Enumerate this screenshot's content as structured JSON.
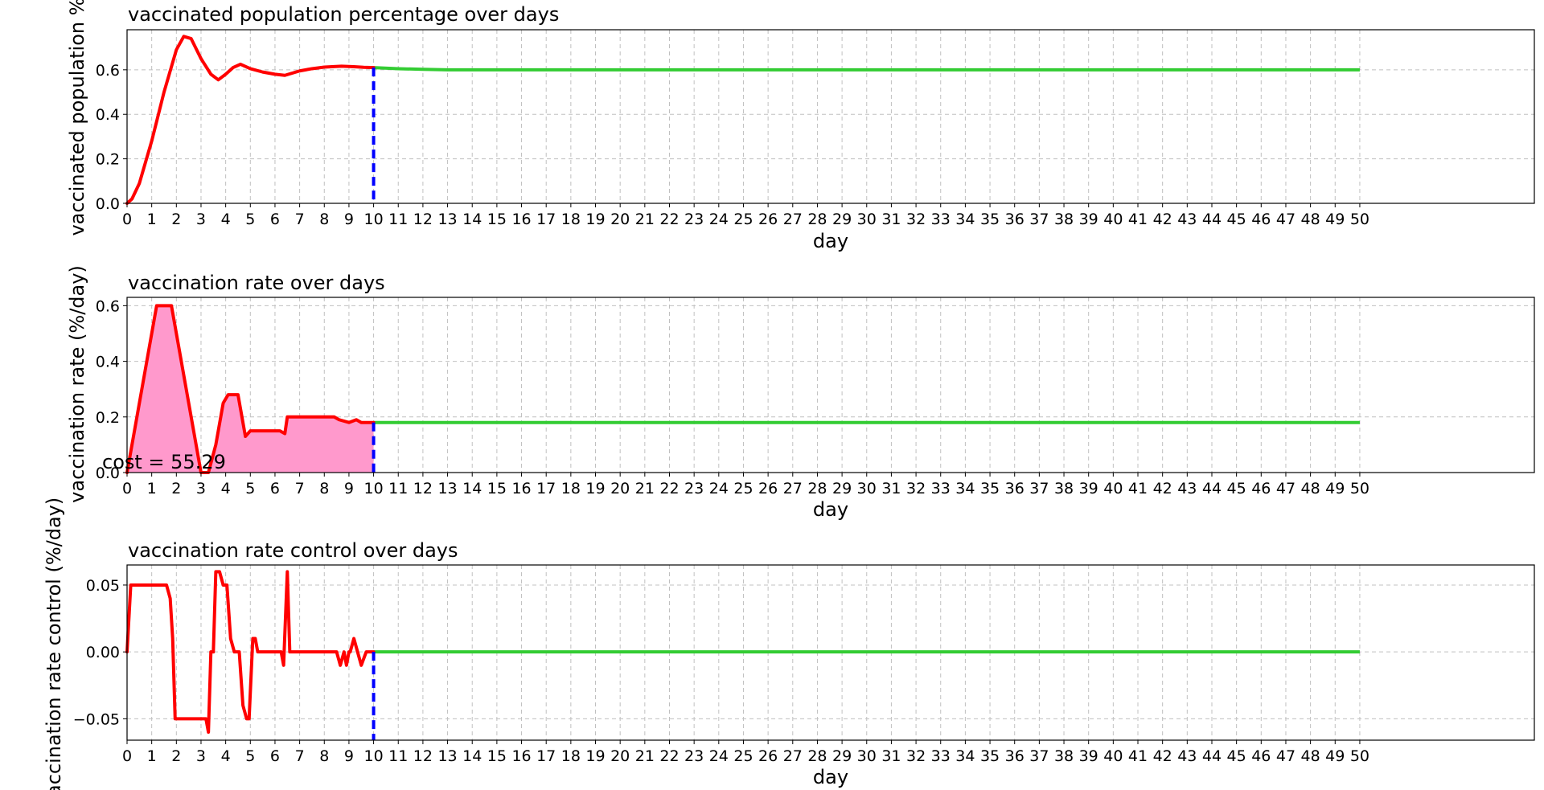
{
  "figure": {
    "annotation": "cost = 55.29"
  },
  "colors": {
    "history_line": "#ff0000",
    "prediction_line": "#33cc33",
    "divider_line": "#0000ff",
    "fill": "#ff99cc",
    "grid": "#c0c0c0"
  },
  "chart_data": [
    {
      "type": "line",
      "title": "vaccinated population percentage over days",
      "xlabel": "day",
      "ylabel": "vaccinated population %",
      "xlim": [
        0,
        50
      ],
      "ylim": [
        0,
        0.78
      ],
      "xticks": [
        0,
        1,
        2,
        3,
        4,
        5,
        6,
        7,
        8,
        9,
        10,
        11,
        12,
        13,
        14,
        15,
        16,
        17,
        18,
        19,
        20,
        21,
        22,
        23,
        24,
        25,
        26,
        27,
        28,
        29,
        30,
        31,
        32,
        33,
        34,
        35,
        36,
        37,
        38,
        39,
        40,
        41,
        42,
        43,
        44,
        45,
        46,
        47,
        48,
        49,
        50
      ],
      "yticks": [
        0.0,
        0.2,
        0.4,
        0.6
      ],
      "ytick_labels": [
        "0.0",
        "0.2",
        "0.4",
        "0.6"
      ],
      "grid": true,
      "divider_x": 10,
      "series": [
        {
          "role": "history",
          "x": [
            0,
            0.2,
            0.5,
            1,
            1.5,
            2,
            2.3,
            2.6,
            3,
            3.4,
            3.7,
            4,
            4.3,
            4.6,
            5,
            5.5,
            6,
            6.4,
            7,
            7.5,
            8,
            8.7,
            9.2,
            9.6,
            10
          ],
          "y": [
            0,
            0.02,
            0.09,
            0.28,
            0.5,
            0.69,
            0.75,
            0.74,
            0.65,
            0.58,
            0.555,
            0.58,
            0.61,
            0.625,
            0.605,
            0.59,
            0.58,
            0.575,
            0.595,
            0.605,
            0.612,
            0.616,
            0.614,
            0.611,
            0.61
          ]
        },
        {
          "role": "prediction",
          "x": [
            10,
            11,
            12,
            13,
            15,
            20,
            30,
            40,
            50
          ],
          "y": [
            0.61,
            0.605,
            0.602,
            0.6,
            0.6,
            0.6,
            0.6,
            0.6,
            0.6
          ]
        }
      ]
    },
    {
      "type": "area",
      "title": "vaccination rate over days",
      "xlabel": "day",
      "ylabel": "vaccination rate (%/day)",
      "xlim": [
        0,
        50
      ],
      "ylim": [
        0,
        0.63
      ],
      "xticks": [
        0,
        1,
        2,
        3,
        4,
        5,
        6,
        7,
        8,
        9,
        10,
        11,
        12,
        13,
        14,
        15,
        16,
        17,
        18,
        19,
        20,
        21,
        22,
        23,
        24,
        25,
        26,
        27,
        28,
        29,
        30,
        31,
        32,
        33,
        34,
        35,
        36,
        37,
        38,
        39,
        40,
        41,
        42,
        43,
        44,
        45,
        46,
        47,
        48,
        49,
        50
      ],
      "yticks": [
        0.0,
        0.2,
        0.4,
        0.6
      ],
      "ytick_labels": [
        "0.0",
        "0.2",
        "0.4",
        "0.6"
      ],
      "grid": true,
      "divider_x": 10,
      "series": [
        {
          "role": "history",
          "x": [
            0,
            1.2,
            1.8,
            3,
            3.3,
            3.6,
            3.9,
            4.1,
            4.5,
            4.8,
            5,
            5.5,
            6.2,
            6.4,
            6.5,
            7,
            8,
            8.4,
            8.6,
            9,
            9.3,
            9.5,
            10
          ],
          "y": [
            0,
            0.6,
            0.6,
            0,
            0,
            0.1,
            0.25,
            0.28,
            0.28,
            0.13,
            0.15,
            0.15,
            0.15,
            0.14,
            0.2,
            0.2,
            0.2,
            0.2,
            0.19,
            0.18,
            0.19,
            0.18,
            0.18
          ]
        },
        {
          "role": "prediction",
          "x": [
            10,
            50
          ],
          "y": [
            0.18,
            0.18
          ]
        }
      ]
    },
    {
      "type": "line",
      "title": "vaccination rate control over days",
      "xlabel": "day",
      "ylabel": "vaccination rate control (%/day)",
      "xlim": [
        0,
        50
      ],
      "ylim": [
        -0.066,
        0.065
      ],
      "xticks": [
        0,
        1,
        2,
        3,
        4,
        5,
        6,
        7,
        8,
        9,
        10,
        11,
        12,
        13,
        14,
        15,
        16,
        17,
        18,
        19,
        20,
        21,
        22,
        23,
        24,
        25,
        26,
        27,
        28,
        29,
        30,
        31,
        32,
        33,
        34,
        35,
        36,
        37,
        38,
        39,
        40,
        41,
        42,
        43,
        44,
        45,
        46,
        47,
        48,
        49,
        50
      ],
      "yticks": [
        -0.05,
        0.0,
        0.05
      ],
      "ytick_labels": [
        "−0.05",
        "0.00",
        "0.05"
      ],
      "grid": true,
      "divider_x": 10,
      "series": [
        {
          "role": "history",
          "x": [
            0,
            0.15,
            1.6,
            1.75,
            1.85,
            1.95,
            3.2,
            3.3,
            3.4,
            3.5,
            3.6,
            3.75,
            3.9,
            4.05,
            4.2,
            4.35,
            4.55,
            4.7,
            4.85,
            4.95,
            5.1,
            5.2,
            5.3,
            5.5,
            6,
            6.25,
            6.35,
            6.5,
            6.6,
            7,
            7.5,
            8.5,
            8.65,
            8.8,
            8.9,
            9,
            9.05,
            9.2,
            9.35,
            9.5,
            9.7,
            10
          ],
          "y": [
            0,
            0.05,
            0.05,
            0.04,
            0.01,
            -0.05,
            -0.05,
            -0.06,
            0,
            0,
            0.06,
            0.06,
            0.05,
            0.05,
            0.01,
            0,
            0,
            -0.04,
            -0.05,
            -0.05,
            0.01,
            0.01,
            0,
            0,
            0,
            0,
            -0.01,
            0.06,
            0,
            0,
            0,
            0,
            -0.01,
            0,
            -0.01,
            0,
            0,
            0.01,
            0,
            -0.01,
            0,
            0
          ]
        },
        {
          "role": "prediction",
          "x": [
            10,
            50
          ],
          "y": [
            0,
            0
          ]
        }
      ]
    }
  ]
}
